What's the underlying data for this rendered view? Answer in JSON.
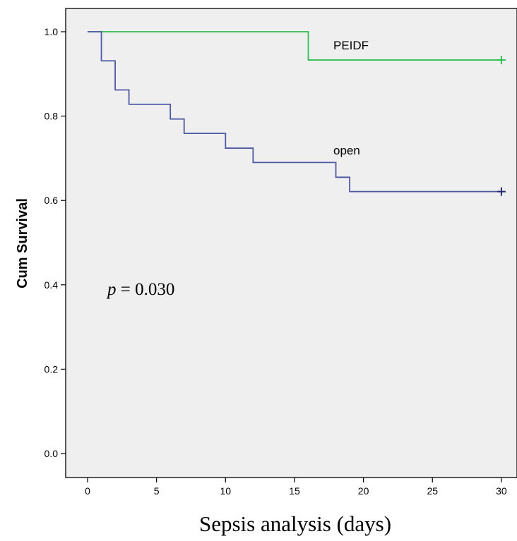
{
  "chart_data": {
    "type": "line",
    "step": true,
    "title": "",
    "xlabel": "Sepsis analysis (days)",
    "ylabel": "Cum Survival",
    "xlim": [
      0,
      30
    ],
    "ylim": [
      0,
      1.0
    ],
    "xticks": [
      0,
      5,
      10,
      15,
      20,
      25,
      30
    ],
    "yticks": [
      0.0,
      0.2,
      0.4,
      0.6,
      0.8,
      1.0
    ],
    "ytick_labels": [
      "0.0",
      "0.2",
      "0.4",
      "0.6",
      "0.8",
      "1.0"
    ],
    "grid": false,
    "background_color": "#efefef",
    "series": [
      {
        "name": "PEIDF",
        "color": "#2fbf4f",
        "x": [
          0,
          16,
          30
        ],
        "y": [
          1.0,
          0.933,
          0.933
        ],
        "censor_x": [
          30
        ],
        "censor_y": [
          0.933
        ]
      },
      {
        "name": "open",
        "color": "#5158a3",
        "censor_color": "#1f2a6e",
        "x": [
          0,
          1,
          2,
          3,
          6,
          7,
          10,
          12,
          18,
          19,
          30
        ],
        "y": [
          1.0,
          0.931,
          0.862,
          0.828,
          0.793,
          0.759,
          0.724,
          0.69,
          0.655,
          0.621,
          0.621
        ],
        "censor_x": [
          30
        ],
        "censor_y": [
          0.621
        ]
      }
    ],
    "annotations": [
      {
        "italic_part": "p",
        "text": " = 0.030"
      }
    ]
  }
}
